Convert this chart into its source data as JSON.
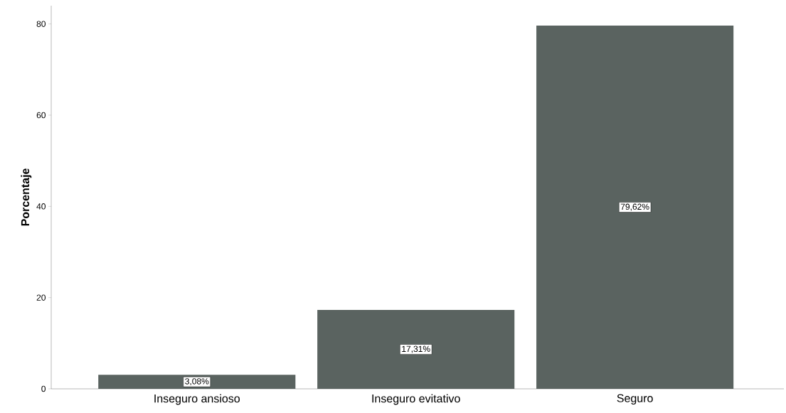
{
  "chart_data": {
    "type": "bar",
    "ylabel": "Porcentaje",
    "categories": [
      "Inseguro ansioso",
      "Inseguro evitativo",
      "Seguro"
    ],
    "values": [
      3.08,
      17.31,
      79.62
    ],
    "value_labels": [
      "3,08%",
      "17,31%",
      "79,62%"
    ],
    "color": "#5a6360",
    "ylim": [
      0,
      84
    ],
    "yticks": [
      0,
      20,
      40,
      60,
      80
    ]
  }
}
